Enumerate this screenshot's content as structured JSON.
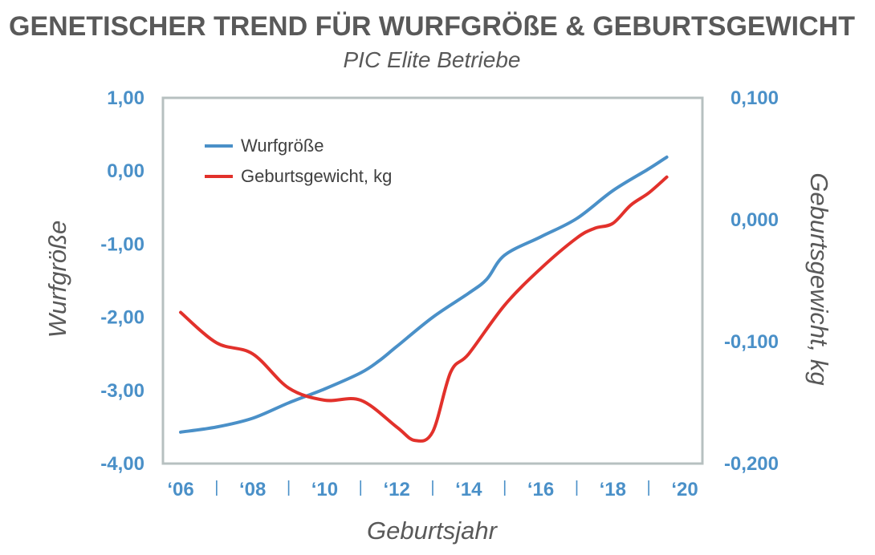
{
  "chart_data": {
    "type": "line",
    "title": "GENETISCHER TREND FÜR WURFGRÖßE & GEBURTSGEWICHT",
    "subtitle": "PIC Elite Betriebe",
    "xlabel": "Geburtsjahr",
    "ylabel": "Wurfgröße",
    "y2label": "Geburtsgewicht, kg",
    "x_tick_labels": [
      "‘06",
      "‘08",
      "‘10",
      "‘12",
      "‘14",
      "‘16",
      "‘18",
      "‘20"
    ],
    "x_separator": "|",
    "xlim": [
      2006,
      2020
    ],
    "ylim": [
      -4.0,
      1.0
    ],
    "y2lim": [
      -0.2,
      0.1
    ],
    "y_ticks": [
      "-4,00",
      "-3,00",
      "-2,00",
      "-1,00",
      "0,00",
      "1,00"
    ],
    "y2_ticks": [
      "-0,200",
      "-0,100",
      "0,000",
      "0,100"
    ],
    "legend_position": "top-left",
    "grid": false,
    "series": [
      {
        "name": "Wurfgröße",
        "axis": "left",
        "color": "#4a90c8",
        "x": [
          2006.0,
          2007.0,
          2008.0,
          2009.0,
          2010.0,
          2011.0,
          2011.5,
          2012.0,
          2013.0,
          2014.0,
          2014.5,
          2015.0,
          2016.0,
          2017.0,
          2018.0,
          2019.0,
          2019.5
        ],
        "y": [
          -3.57,
          -3.5,
          -3.38,
          -3.17,
          -2.98,
          -2.76,
          -2.6,
          -2.4,
          -2.0,
          -1.67,
          -1.48,
          -1.15,
          -0.9,
          -0.65,
          -0.27,
          0.03,
          0.19
        ]
      },
      {
        "name": "Geburtsgewicht, kg",
        "axis": "right",
        "color": "#e2312b",
        "x": [
          2006.0,
          2007.0,
          2008.0,
          2009.0,
          2010.0,
          2011.0,
          2012.0,
          2012.5,
          2013.0,
          2013.5,
          2014.0,
          2015.0,
          2016.0,
          2017.0,
          2017.5,
          2018.0,
          2018.5,
          2019.0,
          2019.5
        ],
        "y": [
          -0.076,
          -0.101,
          -0.11,
          -0.138,
          -0.148,
          -0.148,
          -0.17,
          -0.181,
          -0.174,
          -0.125,
          -0.11,
          -0.07,
          -0.04,
          -0.015,
          -0.007,
          -0.003,
          0.012,
          0.022,
          0.035
        ]
      }
    ]
  }
}
